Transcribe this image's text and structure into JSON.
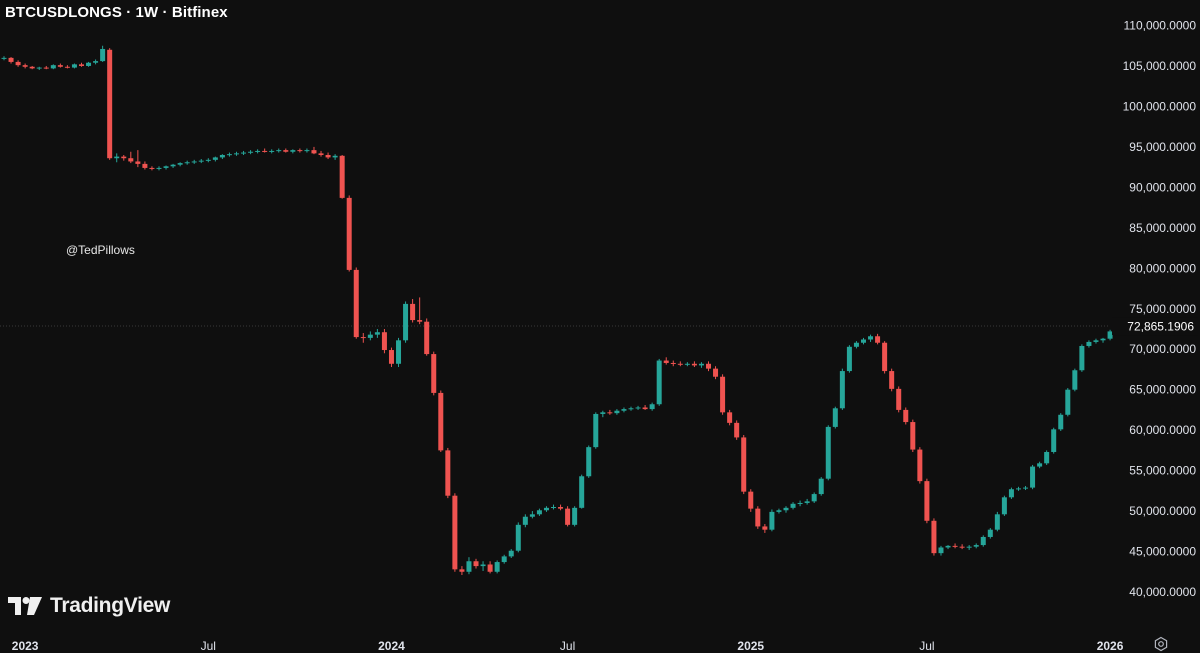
{
  "header": {
    "title": "BTCUSDLONGS · 1W · Bitfinex"
  },
  "watermark": "@TedPillows",
  "logo": {
    "text": "TradingView",
    "icon": "tradingview-logo-icon"
  },
  "settings_icon": "gear-icon",
  "colors": {
    "background": "#0f0f0f",
    "up": "#26a69a",
    "down": "#ef5350",
    "text": "#e0e3eb",
    "price_line": "#3a3a3a"
  },
  "chart_data": {
    "type": "candlestick",
    "symbol": "BTCUSDLONGS",
    "interval": "1W",
    "exchange": "Bitfinex",
    "ylim": [
      37500,
      111500
    ],
    "yticks": [
      40000,
      45000,
      50000,
      55000,
      60000,
      65000,
      70000,
      75000,
      80000,
      85000,
      90000,
      95000,
      100000,
      105000,
      110000
    ],
    "ytick_labels": [
      "40,000.0000",
      "45,000.0000",
      "50,000.0000",
      "55,000.0000",
      "60,000.0000",
      "65,000.0000",
      "70,000.0000",
      "75,000.0000",
      "80,000.0000",
      "85,000.0000",
      "90,000.0000",
      "95,000.0000",
      "100,000.0000",
      "105,000.0000",
      "110,000.0000"
    ],
    "xticks": [
      {
        "label": "2023",
        "index": 3,
        "bold": true
      },
      {
        "label": "Jul",
        "index": 29,
        "bold": false
      },
      {
        "label": "2024",
        "index": 55,
        "bold": true
      },
      {
        "label": "Jul",
        "index": 80,
        "bold": false
      },
      {
        "label": "2025",
        "index": 106,
        "bold": true
      },
      {
        "label": "Jul",
        "index": 131,
        "bold": false
      },
      {
        "label": "2026",
        "index": 157,
        "bold": true
      }
    ],
    "last_price": 72865.1906,
    "last_price_label": "72,865.1906",
    "candles": [
      [
        105900,
        106200,
        105700,
        106000
      ],
      [
        106000,
        106100,
        105300,
        105500
      ],
      [
        105500,
        105700,
        104900,
        105100
      ],
      [
        105100,
        105300,
        104700,
        104900
      ],
      [
        104900,
        105000,
        104600,
        104700
      ],
      [
        104700,
        104900,
        104500,
        104800
      ],
      [
        104800,
        105000,
        104600,
        104700
      ],
      [
        104700,
        105200,
        104600,
        105100
      ],
      [
        105100,
        105300,
        104800,
        104900
      ],
      [
        104900,
        105100,
        104700,
        104800
      ],
      [
        104800,
        105300,
        104700,
        105200
      ],
      [
        105200,
        105400,
        104900,
        105000
      ],
      [
        105000,
        105500,
        104900,
        105400
      ],
      [
        105400,
        105800,
        105200,
        105600
      ],
      [
        105600,
        107500,
        105500,
        107100
      ],
      [
        107000,
        107200,
        93400,
        93600
      ],
      [
        93600,
        94200,
        93100,
        93800
      ],
      [
        93800,
        94000,
        93300,
        93600
      ],
      [
        93600,
        94400,
        93000,
        93200
      ],
      [
        93200,
        94600,
        92500,
        92900
      ],
      [
        92900,
        93200,
        92200,
        92400
      ],
      [
        92400,
        92600,
        92100,
        92300
      ],
      [
        92300,
        92600,
        92100,
        92400
      ],
      [
        92400,
        92700,
        92200,
        92600
      ],
      [
        92600,
        92900,
        92400,
        92800
      ],
      [
        92800,
        93100,
        92600,
        93000
      ],
      [
        93000,
        93300,
        92800,
        93100
      ],
      [
        93100,
        93400,
        92900,
        93200
      ],
      [
        93200,
        93500,
        93000,
        93300
      ],
      [
        93300,
        93600,
        93100,
        93400
      ],
      [
        93400,
        93800,
        93200,
        93700
      ],
      [
        93700,
        94100,
        93500,
        94000
      ],
      [
        94000,
        94300,
        93800,
        94100
      ],
      [
        94100,
        94400,
        93900,
        94200
      ],
      [
        94200,
        94500,
        94000,
        94300
      ],
      [
        94300,
        94600,
        94100,
        94400
      ],
      [
        94400,
        94700,
        94200,
        94500
      ],
      [
        94500,
        94800,
        94300,
        94400
      ],
      [
        94400,
        94700,
        94200,
        94500
      ],
      [
        94500,
        94800,
        94300,
        94600
      ],
      [
        94600,
        94800,
        94300,
        94400
      ],
      [
        94400,
        94700,
        94200,
        94600
      ],
      [
        94600,
        94800,
        94300,
        94500
      ],
      [
        94500,
        94800,
        94300,
        94600
      ],
      [
        94600,
        95000,
        94100,
        94200
      ],
      [
        94200,
        94500,
        93800,
        94000
      ],
      [
        94000,
        94300,
        93500,
        93700
      ],
      [
        93700,
        94100,
        93400,
        93900
      ],
      [
        93900,
        94000,
        88600,
        88700
      ],
      [
        88700,
        89000,
        79600,
        79800
      ],
      [
        79800,
        80100,
        71300,
        71500
      ],
      [
        71500,
        72000,
        70800,
        71400
      ],
      [
        71400,
        72200,
        71100,
        71800
      ],
      [
        71800,
        72500,
        71400,
        72100
      ],
      [
        72100,
        72500,
        69500,
        69900
      ],
      [
        69900,
        70200,
        67800,
        68200
      ],
      [
        68200,
        71400,
        67800,
        71100
      ],
      [
        71100,
        75900,
        70800,
        75600
      ],
      [
        75600,
        76200,
        73300,
        73600
      ],
      [
        73600,
        76400,
        73100,
        73400
      ],
      [
        73400,
        73800,
        69200,
        69400
      ],
      [
        69400,
        69700,
        64300,
        64600
      ],
      [
        64600,
        64900,
        57300,
        57500
      ],
      [
        57500,
        57800,
        51600,
        51900
      ],
      [
        51900,
        52200,
        42500,
        42800
      ],
      [
        42800,
        43200,
        42100,
        42500
      ],
      [
        42500,
        44300,
        42200,
        43800
      ],
      [
        43800,
        44100,
        42900,
        43200
      ],
      [
        43200,
        43800,
        42600,
        43400
      ],
      [
        43400,
        43800,
        42300,
        42500
      ],
      [
        42500,
        43900,
        42300,
        43700
      ],
      [
        43700,
        44600,
        43500,
        44400
      ],
      [
        44400,
        45300,
        44200,
        45100
      ],
      [
        45100,
        48600,
        44900,
        48300
      ],
      [
        48300,
        49600,
        48000,
        49300
      ],
      [
        49300,
        50000,
        49100,
        49600
      ],
      [
        49600,
        50300,
        49400,
        50100
      ],
      [
        50100,
        50600,
        49900,
        50400
      ],
      [
        50400,
        50800,
        50200,
        50500
      ],
      [
        50500,
        50800,
        50100,
        50300
      ],
      [
        50300,
        50600,
        48100,
        48300
      ],
      [
        48300,
        50600,
        48100,
        50400
      ],
      [
        50400,
        54500,
        50300,
        54300
      ],
      [
        54300,
        58100,
        54100,
        57900
      ],
      [
        57900,
        62200,
        57700,
        62000
      ],
      [
        62000,
        62400,
        61600,
        62200
      ],
      [
        62200,
        62500,
        61900,
        62100
      ],
      [
        62100,
        62600,
        61900,
        62400
      ],
      [
        62400,
        62800,
        62200,
        62600
      ],
      [
        62600,
        62900,
        62400,
        62700
      ],
      [
        62700,
        63000,
        62500,
        62800
      ],
      [
        62800,
        63100,
        62500,
        62600
      ],
      [
        62600,
        63400,
        62400,
        63200
      ],
      [
        63200,
        68800,
        63000,
        68600
      ],
      [
        68600,
        69000,
        68100,
        68300
      ],
      [
        68300,
        68600,
        67900,
        68200
      ],
      [
        68200,
        68500,
        67900,
        68100
      ],
      [
        68100,
        68400,
        67900,
        68200
      ],
      [
        68200,
        68500,
        67800,
        68000
      ],
      [
        68000,
        68400,
        67700,
        68200
      ],
      [
        68200,
        68500,
        67300,
        67600
      ],
      [
        67600,
        67900,
        66300,
        66600
      ],
      [
        66600,
        66900,
        61900,
        62200
      ],
      [
        62200,
        62500,
        60600,
        60900
      ],
      [
        60900,
        61200,
        58800,
        59100
      ],
      [
        59100,
        59400,
        52100,
        52400
      ],
      [
        52400,
        52700,
        49900,
        50300
      ],
      [
        50300,
        50600,
        47800,
        48100
      ],
      [
        48100,
        48400,
        47300,
        47700
      ],
      [
        47700,
        50200,
        47500,
        49900
      ],
      [
        49900,
        50300,
        49700,
        50100
      ],
      [
        50100,
        50600,
        49800,
        50400
      ],
      [
        50400,
        51100,
        50200,
        50900
      ],
      [
        50900,
        51300,
        50600,
        51000
      ],
      [
        51000,
        51500,
        50800,
        51200
      ],
      [
        51200,
        52300,
        51000,
        52100
      ],
      [
        52100,
        54200,
        51900,
        54000
      ],
      [
        54000,
        60600,
        53800,
        60400
      ],
      [
        60400,
        62900,
        60200,
        62700
      ],
      [
        62700,
        67600,
        62500,
        67300
      ],
      [
        67300,
        70500,
        67100,
        70300
      ],
      [
        70300,
        71000,
        70100,
        70800
      ],
      [
        70800,
        71400,
        70600,
        71200
      ],
      [
        71200,
        71800,
        70900,
        71600
      ],
      [
        71600,
        71900,
        70600,
        70800
      ],
      [
        70800,
        71000,
        67000,
        67300
      ],
      [
        67300,
        67600,
        64800,
        65100
      ],
      [
        65100,
        65400,
        62200,
        62500
      ],
      [
        62500,
        62800,
        60700,
        61000
      ],
      [
        61000,
        61300,
        57300,
        57600
      ],
      [
        57600,
        57900,
        53400,
        53700
      ],
      [
        53700,
        54000,
        48500,
        48800
      ],
      [
        48800,
        49100,
        44500,
        44800
      ],
      [
        44800,
        45700,
        44500,
        45500
      ],
      [
        45500,
        45800,
        45300,
        45700
      ],
      [
        45700,
        46000,
        45400,
        45600
      ],
      [
        45600,
        45900,
        45300,
        45500
      ],
      [
        45500,
        45800,
        45200,
        45600
      ],
      [
        45600,
        46000,
        45400,
        45800
      ],
      [
        45800,
        47000,
        45600,
        46800
      ],
      [
        46800,
        47900,
        46600,
        47700
      ],
      [
        47700,
        49900,
        47500,
        49600
      ],
      [
        49600,
        51900,
        49400,
        51700
      ],
      [
        51700,
        52900,
        51500,
        52700
      ],
      [
        52700,
        53000,
        52500,
        52800
      ],
      [
        52800,
        53100,
        52600,
        52900
      ],
      [
        52900,
        55700,
        52700,
        55500
      ],
      [
        55500,
        56100,
        55300,
        55900
      ],
      [
        55900,
        57500,
        55700,
        57300
      ],
      [
        57300,
        60300,
        57100,
        60100
      ],
      [
        60100,
        62100,
        59900,
        61900
      ],
      [
        61900,
        65200,
        61700,
        65000
      ],
      [
        65000,
        67600,
        64800,
        67400
      ],
      [
        67400,
        70600,
        67200,
        70400
      ],
      [
        70400,
        71100,
        70200,
        70900
      ],
      [
        70900,
        71300,
        70700,
        71100
      ],
      [
        71100,
        71400,
        70800,
        71300
      ],
      [
        71300,
        72400,
        71100,
        72200
      ],
      [
        72200,
        72800,
        72000,
        72600
      ],
      [
        72600,
        73000,
        72400,
        72865
      ]
    ]
  }
}
